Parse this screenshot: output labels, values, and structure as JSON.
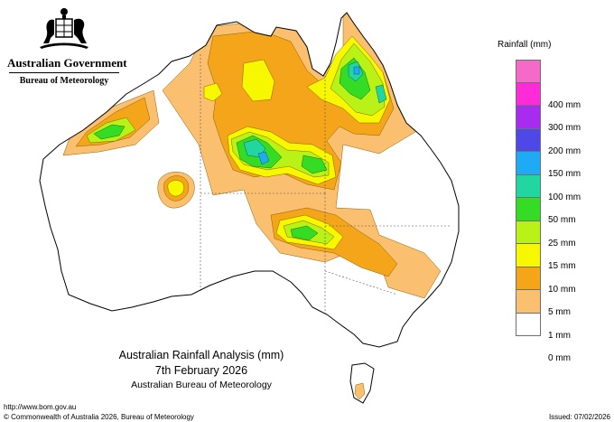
{
  "header": {
    "government": "Australian Government",
    "bureau": "Bureau of Meteorology"
  },
  "legend": {
    "title": "Rainfall (mm)",
    "items": [
      {
        "label": "",
        "color": "#f56ac8"
      },
      {
        "label": "400 mm",
        "color": "#ff2bd9"
      },
      {
        "label": "300 mm",
        "color": "#a72cf0"
      },
      {
        "label": "200 mm",
        "color": "#4e48e8"
      },
      {
        "label": "150 mm",
        "color": "#1eaaf5"
      },
      {
        "label": "100 mm",
        "color": "#22d6a2"
      },
      {
        "label": "50 mm",
        "color": "#35dc26"
      },
      {
        "label": "25 mm",
        "color": "#b8f217"
      },
      {
        "label": "15 mm",
        "color": "#f7f700"
      },
      {
        "label": "10 mm",
        "color": "#f4a51a"
      },
      {
        "label": "5 mm",
        "color": "#fac070"
      },
      {
        "label": "1 mm",
        "color": "#ffffff"
      },
      {
        "label": "0 mm",
        "color": null
      }
    ]
  },
  "title": {
    "line1": "Australian Rainfall Analysis (mm)",
    "line2": "7th February 2026",
    "line3": "Australian Bureau of Meteorology"
  },
  "footer": {
    "url": "http://www.bom.gov.au",
    "copyright": "© Commonwealth of Australia 2026, Bureau of Meteorology",
    "issued": "Issued: 07/02/2026"
  },
  "colors": {
    "r1": "#fac070",
    "r5": "#f4a51a",
    "r10": "#f7f700",
    "r15": "#b8f217",
    "r25": "#35dc26",
    "r50": "#22d6a2",
    "r100": "#1eaaf5",
    "r150": "#4e48e8"
  }
}
